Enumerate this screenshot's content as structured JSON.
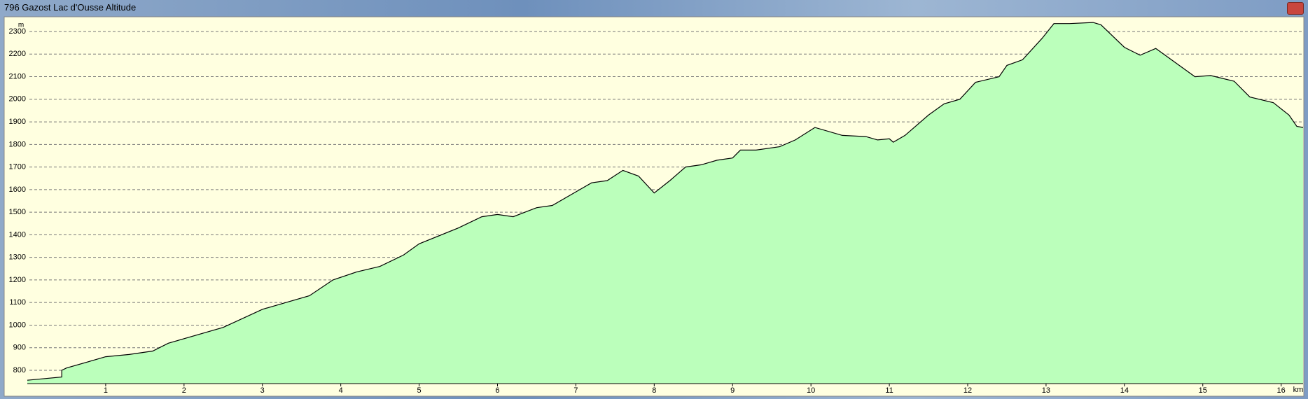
{
  "chart_data": {
    "type": "area",
    "title": "796 Gazost Lac d'Ousse Altitude",
    "xlabel": "km",
    "ylabel": "m",
    "x": [
      0,
      0.44,
      0.44,
      0.5,
      1.0,
      1.3,
      1.6,
      1.8,
      2.5,
      3.0,
      3.3,
      3.6,
      3.9,
      4.2,
      4.5,
      4.8,
      5.0,
      5.5,
      5.8,
      6.0,
      6.2,
      6.5,
      6.7,
      7.0,
      7.2,
      7.4,
      7.6,
      7.8,
      8.0,
      8.2,
      8.4,
      8.6,
      8.8,
      9.0,
      9.1,
      9.3,
      9.6,
      9.8,
      10.05,
      10.4,
      10.7,
      10.85,
      11.0,
      11.05,
      11.2,
      11.5,
      11.7,
      11.9,
      12.1,
      12.4,
      12.5,
      12.7,
      12.95,
      13.1,
      13.3,
      13.6,
      13.7,
      14.0,
      14.2,
      14.4,
      14.6,
      14.9,
      15.1,
      15.4,
      15.6,
      15.9,
      16.1,
      16.2,
      16.28
    ],
    "y": [
      756,
      770,
      800,
      810,
      860,
      870,
      885,
      920,
      990,
      1070,
      1100,
      1130,
      1200,
      1235,
      1260,
      1310,
      1360,
      1430,
      1480,
      1490,
      1480,
      1520,
      1530,
      1590,
      1630,
      1640,
      1685,
      1660,
      1585,
      1640,
      1700,
      1710,
      1730,
      1740,
      1775,
      1775,
      1790,
      1820,
      1875,
      1840,
      1835,
      1820,
      1825,
      1810,
      1840,
      1930,
      1980,
      2000,
      2075,
      2100,
      2150,
      2175,
      2270,
      2335,
      2335,
      2340,
      2330,
      2230,
      2195,
      2225,
      2175,
      2100,
      2105,
      2080,
      2010,
      1985,
      1930,
      1880,
      1875
    ],
    "fill_color": "#bbffbb",
    "line_color": "#000000",
    "xlim": [
      0,
      16.28
    ],
    "ylim": [
      741,
      2359
    ],
    "xticks": [
      1,
      2,
      3,
      4,
      5,
      6,
      7,
      8,
      9,
      10,
      11,
      12,
      13,
      14,
      15,
      16
    ],
    "yticks": [
      800,
      900,
      1000,
      1100,
      1200,
      1300,
      1400,
      1500,
      1600,
      1700,
      1800,
      1900,
      2000,
      2100,
      2200,
      2300
    ],
    "grid": true
  }
}
